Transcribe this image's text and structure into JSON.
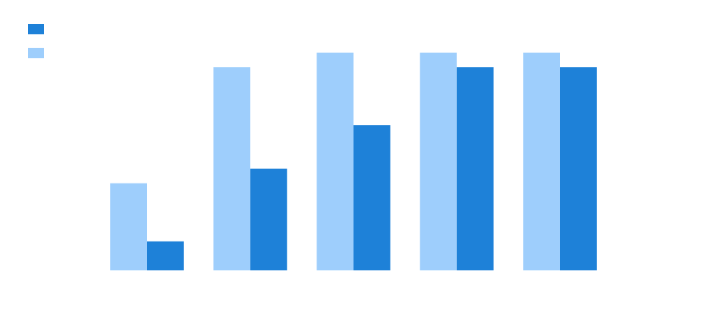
{
  "chart_data": {
    "type": "bar",
    "categories": [
      "",
      "",
      "",
      "",
      ""
    ],
    "series": [
      {
        "values": [
          6,
          14,
          15,
          15,
          15
        ],
        "color": "#9ECEFC"
      },
      {
        "values": [
          2,
          7,
          10,
          14,
          14
        ],
        "color": "#1E81D8"
      }
    ],
    "legend_order": [
      1,
      0
    ],
    "ylim": [
      0,
      15
    ],
    "grid": false,
    "legend_position": "top-left",
    "title": "",
    "xlabel": "",
    "ylabel": ""
  }
}
